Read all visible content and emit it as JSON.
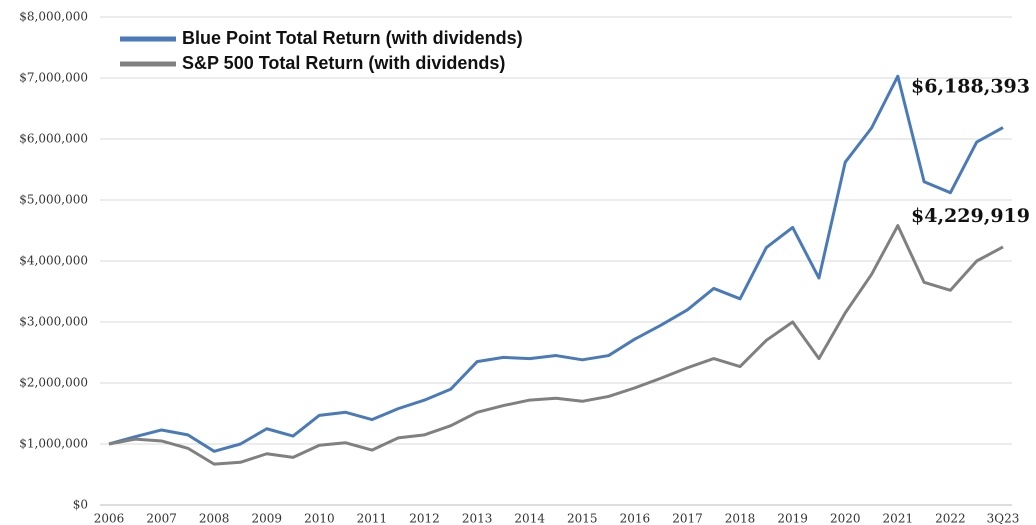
{
  "chart_data": {
    "type": "line",
    "categories": [
      "2006",
      null,
      "2007",
      null,
      "2008",
      null,
      "2009",
      null,
      "2010",
      null,
      "2011",
      null,
      "2012",
      null,
      "2013",
      null,
      "2014",
      null,
      "2015",
      null,
      "2016",
      null,
      "2017",
      null,
      "2018",
      null,
      "2019",
      null,
      "2020",
      null,
      "2021",
      null,
      "2022",
      null,
      "3Q23"
    ],
    "series": [
      {
        "name": "Blue Point Total Return (with dividends)",
        "color": "#4a7ab8",
        "values": [
          1000000,
          1120000,
          1230000,
          1150000,
          880000,
          1000000,
          1250000,
          1130000,
          1470000,
          1520000,
          1400000,
          1580000,
          1720000,
          1900000,
          2350000,
          2420000,
          2400000,
          2450000,
          2380000,
          2450000,
          2720000,
          2950000,
          3200000,
          3550000,
          3380000,
          4220000,
          4550000,
          3720000,
          5620000,
          6180000,
          7030000,
          5300000,
          5120000,
          5950000,
          6188393
        ],
        "value_labels": [
          null,
          null,
          null,
          null,
          null,
          null,
          null,
          null,
          null,
          null,
          null,
          null,
          null,
          null,
          null,
          null,
          null,
          null,
          null,
          null,
          null,
          null,
          null,
          null,
          null,
          null,
          null,
          null,
          null,
          null,
          null,
          null,
          null,
          null,
          "$6,188,393"
        ]
      },
      {
        "name": "S&P 500 Total Return (with dividends)",
        "color": "#808080",
        "values": [
          1000000,
          1080000,
          1050000,
          930000,
          670000,
          700000,
          840000,
          780000,
          980000,
          1020000,
          900000,
          1100000,
          1150000,
          1300000,
          1520000,
          1630000,
          1720000,
          1750000,
          1700000,
          1780000,
          1920000,
          2080000,
          2250000,
          2400000,
          2270000,
          2700000,
          3000000,
          2400000,
          3150000,
          3780000,
          4580000,
          3650000,
          3520000,
          4000000,
          4229919
        ],
        "value_labels": [
          null,
          null,
          null,
          null,
          null,
          null,
          null,
          null,
          null,
          null,
          null,
          null,
          null,
          null,
          null,
          null,
          null,
          null,
          null,
          null,
          null,
          null,
          null,
          null,
          null,
          null,
          null,
          null,
          null,
          null,
          null,
          null,
          null,
          null,
          "$4,229,919"
        ]
      }
    ],
    "ylim": [
      0,
      8000000
    ],
    "yticks": [
      {
        "value": 0,
        "label": "$0"
      },
      {
        "value": 1000000,
        "label": "$1,000,000"
      },
      {
        "value": 2000000,
        "label": "$2,000,000"
      },
      {
        "value": 3000000,
        "label": "$3,000,000"
      },
      {
        "value": 4000000,
        "label": "$4,000,000"
      },
      {
        "value": 5000000,
        "label": "$5,000,000"
      },
      {
        "value": 6000000,
        "label": "$6,000,000"
      },
      {
        "value": 7000000,
        "label": "$7,000,000"
      },
      {
        "value": 8000000,
        "label": "$8,000,000"
      }
    ],
    "grid": true,
    "legend": "top-left"
  }
}
